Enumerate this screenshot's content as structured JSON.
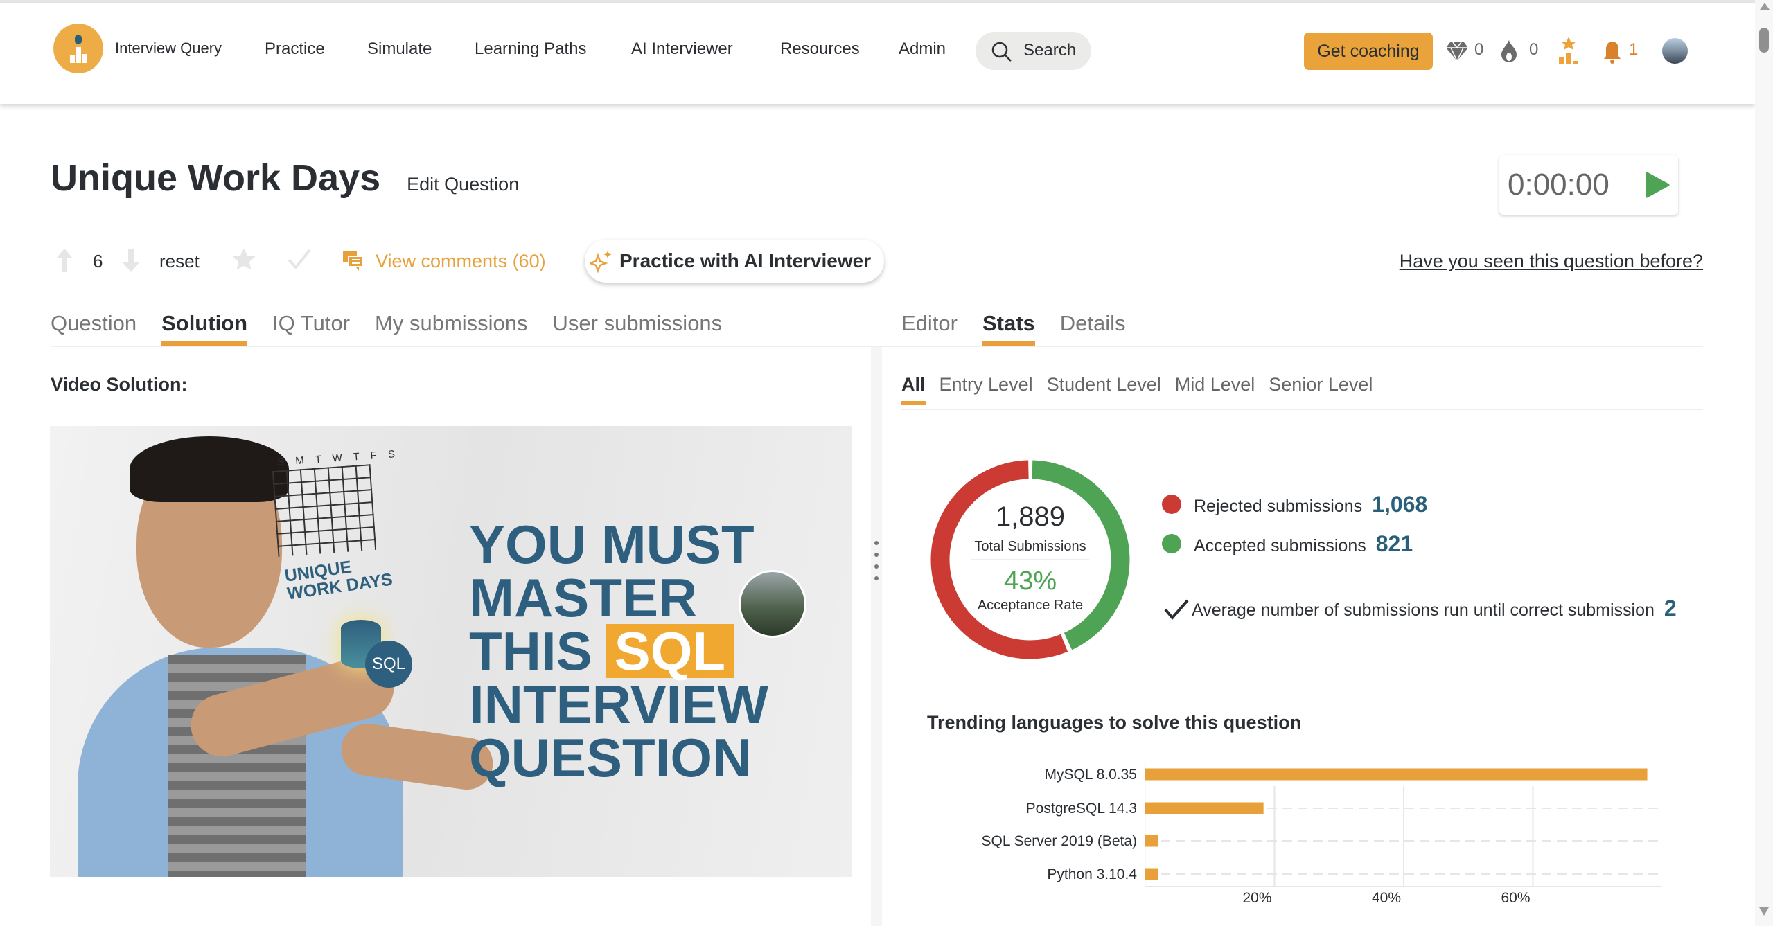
{
  "nav": {
    "brand": "Interview Query",
    "items": [
      "Practice",
      "Simulate",
      "Learning Paths",
      "AI Interviewer",
      "Resources",
      "Admin"
    ],
    "search_label": "Search",
    "coaching_label": "Get coaching",
    "gems": "0",
    "streak": "0",
    "notifications": "1",
    "accent": "#eaa33a"
  },
  "question": {
    "title": "Unique Work Days",
    "edit_label": "Edit Question",
    "timer": "0:00:00",
    "votes": "6",
    "reset_label": "reset",
    "comments_label": "View comments (60)",
    "ai_label": "Practice with AI Interviewer",
    "seen_label": "Have you seen this question before?"
  },
  "left_tabs": [
    "Question",
    "Solution",
    "IQ Tutor",
    "My submissions",
    "User submissions"
  ],
  "right_tabs": [
    "Editor",
    "Stats",
    "Details"
  ],
  "video": {
    "heading": "Video Solution:",
    "thumb_lines": [
      "YOU MUST",
      "MASTER",
      "THIS",
      "SQL",
      "INTERVIEW",
      "QUESTION"
    ],
    "thumb_tag": "UNIQUE WORK DAYS",
    "thumb_badge": "SQL",
    "calendar_days": "S M T W T F S"
  },
  "level_tabs": [
    "All",
    "Entry Level",
    "Student Level",
    "Mid Level",
    "Senior Level"
  ],
  "stats": {
    "total": "1,889",
    "total_label": "Total Submissions",
    "rate": "43%",
    "rate_label": "Acceptance Rate",
    "rejected_label": "Rejected submissions",
    "rejected": "1,068",
    "accepted_label": "Accepted submissions",
    "accepted": "821",
    "avg_label": "Average number of submissions run until correct submission",
    "avg": "2",
    "colors": {
      "rejected": "#cc3a34",
      "accepted": "#4ea454"
    }
  },
  "chart_data": {
    "type": "bar",
    "orientation": "horizontal",
    "title": "Trending languages to solve this question",
    "categories": [
      "MySQL 8.0.35",
      "PostgreSQL 14.3",
      "SQL Server 2019 (Beta)",
      "Python 3.10.4"
    ],
    "values": [
      77.7,
      18.3,
      2,
      2
    ],
    "unit": "%",
    "xlim": [
      0,
      80
    ],
    "ticks": [
      "20%",
      "40%",
      "60%"
    ],
    "grid": true,
    "color": "#e8a03a"
  }
}
